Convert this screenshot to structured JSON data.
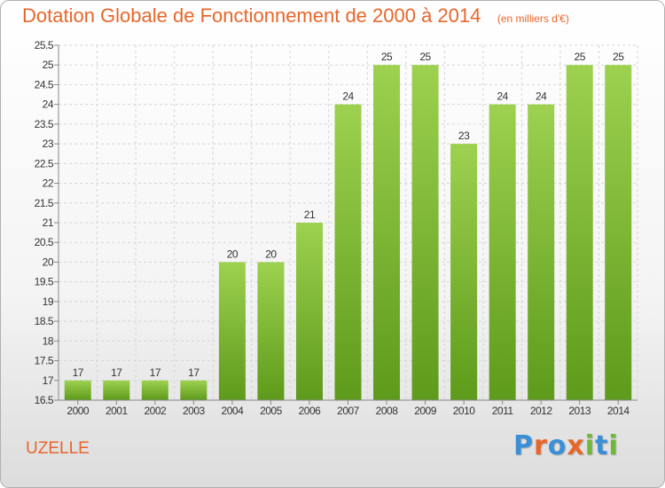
{
  "title": "Dotation Globale de Fonctionnement de 2000 à 2014",
  "subtitle": "(en milliers d'€)",
  "city": "UZELLE",
  "logo": {
    "letters": [
      "P",
      "r",
      "o",
      "x",
      "i",
      "t",
      "i"
    ],
    "colors": [
      "#3a8fd6",
      "#e8662a",
      "#3a8fd6",
      "#e8662a",
      "#6fb83a",
      "#3a8fd6",
      "#6fb83a"
    ]
  },
  "colors": {
    "bar_top": "#9dd14f",
    "bar_bottom": "#5e9a1b",
    "title": "#e8662a"
  },
  "chart_data": {
    "type": "bar",
    "title": "Dotation Globale de Fonctionnement de 2000 à 2014",
    "subtitle": "(en milliers d'€)",
    "categories": [
      "2000",
      "2001",
      "2002",
      "2003",
      "2004",
      "2005",
      "2006",
      "2007",
      "2008",
      "2009",
      "2010",
      "2011",
      "2012",
      "2013",
      "2014"
    ],
    "values": [
      17,
      17,
      17,
      17,
      20,
      20,
      21,
      24,
      25,
      25,
      23,
      24,
      24,
      25,
      25
    ],
    "ylim": [
      16.5,
      25.5
    ],
    "yticks": [
      "16.5",
      "17",
      "17.5",
      "18",
      "18.5",
      "19",
      "19.5",
      "20",
      "20.5",
      "21",
      "21.5",
      "22",
      "22.5",
      "23",
      "23.5",
      "24",
      "24.5",
      "25",
      "25.5"
    ],
    "grid": true,
    "xlabel": "",
    "ylabel": ""
  }
}
